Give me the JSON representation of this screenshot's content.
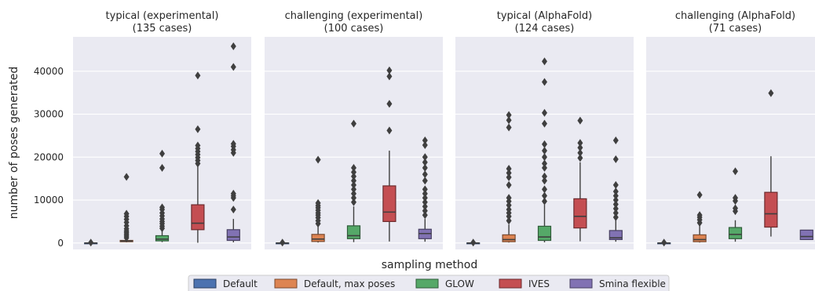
{
  "chart_data": {
    "type": "box",
    "xlabel": "sampling method",
    "ylabel": "number of poses generated",
    "ylim": [
      -1500,
      48000
    ],
    "yticks": [
      0,
      10000,
      20000,
      30000,
      40000
    ],
    "ytick_labels": [
      "0",
      "10000",
      "20000",
      "30000",
      "40000"
    ],
    "grid": true,
    "legend_position": "bottom-center",
    "methods": [
      {
        "name": "Default",
        "color": "#4c72b0"
      },
      {
        "name": "Default, max poses",
        "color": "#dd8452"
      },
      {
        "name": "GLOW",
        "color": "#55a868"
      },
      {
        "name": "IVES",
        "color": "#c44e52"
      },
      {
        "name": "Smina flexible",
        "color": "#8172b3"
      }
    ],
    "panels": [
      {
        "title_line1": "typical (experimental)",
        "title_line2": "(135 cases)",
        "boxes": [
          {
            "method": "Default",
            "whislo": 0,
            "q1": 0,
            "med": 0,
            "q3": 0,
            "whishi": 0,
            "fliers": [
              100
            ]
          },
          {
            "method": "Default, max poses",
            "whislo": 150,
            "q1": 300,
            "med": 450,
            "q3": 600,
            "whishi": 900,
            "fliers": [
              1200,
              1600,
              2000,
              2400,
              2800,
              3300,
              4000,
              4800,
              5500,
              6200,
              6800,
              15400
            ]
          },
          {
            "method": "GLOW",
            "whislo": 200,
            "q1": 500,
            "med": 900,
            "q3": 1700,
            "whishi": 3000,
            "fliers": [
              3400,
              3900,
              4500,
              5000,
              5600,
              6300,
              7000,
              7800,
              8300,
              17500,
              20800
            ]
          },
          {
            "method": "IVES",
            "whislo": 50,
            "q1": 3100,
            "med": 4600,
            "q3": 8900,
            "whishi": 17800,
            "fliers": [
              18500,
              19200,
              19900,
              20600,
              21300,
              22000,
              22700,
              26500,
              39000
            ]
          },
          {
            "method": "Smina flexible",
            "whislo": 150,
            "q1": 600,
            "med": 1400,
            "q3": 3100,
            "whishi": 5600,
            "fliers": [
              7800,
              10500,
              11000,
              11500,
              21000,
              21700,
              22500,
              23100,
              41000,
              45800
            ]
          }
        ]
      },
      {
        "title_line1": "challenging (experimental)",
        "title_line2": "(100 cases)",
        "boxes": [
          {
            "method": "Default",
            "whislo": 0,
            "q1": 0,
            "med": 0,
            "q3": 0,
            "whishi": 0,
            "fliers": [
              100
            ]
          },
          {
            "method": "Default, max poses",
            "whislo": 100,
            "q1": 350,
            "med": 900,
            "q3": 2000,
            "whishi": 3900,
            "fliers": [
              4500,
              5200,
              5900,
              6500,
              7000,
              7600,
              8200,
              8700,
              9300,
              19400
            ]
          },
          {
            "method": "GLOW",
            "whislo": 200,
            "q1": 1000,
            "med": 1700,
            "q3": 4000,
            "whishi": 8500,
            "fliers": [
              9500,
              10500,
              11500,
              12500,
              13500,
              14500,
              15500,
              16500,
              17500,
              27800
            ]
          },
          {
            "method": "IVES",
            "whislo": 350,
            "q1": 5000,
            "med": 7200,
            "q3": 13300,
            "whishi": 21500,
            "fliers": [
              26200,
              32400,
              38800,
              40200
            ]
          },
          {
            "method": "Smina flexible",
            "whislo": 300,
            "q1": 1000,
            "med": 2200,
            "q3": 3200,
            "whishi": 5600,
            "fliers": [
              6500,
              7500,
              8500,
              9500,
              10500,
              11500,
              12500,
              14500,
              16000,
              17500,
              18800,
              20000,
              22800,
              23900
            ]
          }
        ]
      },
      {
        "title_line1": "typical (AlphaFold)",
        "title_line2": "(124 cases)",
        "boxes": [
          {
            "method": "Default",
            "whislo": 0,
            "q1": 0,
            "med": 0,
            "q3": 0,
            "whishi": 0,
            "fliers": [
              100
            ]
          },
          {
            "method": "Default, max poses",
            "whislo": 100,
            "q1": 300,
            "med": 800,
            "q3": 1900,
            "whishi": 4300,
            "fliers": [
              5200,
              6200,
              7000,
              7800,
              8800,
              9700,
              10500,
              13500,
              15300,
              16300,
              17300,
              26900,
              28600,
              29800
            ]
          },
          {
            "method": "GLOW",
            "whislo": 150,
            "q1": 600,
            "med": 1400,
            "q3": 3900,
            "whishi": 8900,
            "fliers": [
              9700,
              11000,
              12500,
              14500,
              15500,
              17500,
              18500,
              20000,
              21500,
              23000,
              27800,
              30300,
              37500,
              42300
            ]
          },
          {
            "method": "IVES",
            "whislo": 400,
            "q1": 3500,
            "med": 6200,
            "q3": 10300,
            "whishi": 18800,
            "fliers": [
              19800,
              21000,
              22200,
              23300,
              28500
            ]
          },
          {
            "method": "Smina flexible",
            "whislo": 300,
            "q1": 800,
            "med": 1200,
            "q3": 2900,
            "whishi": 5300,
            "fliers": [
              6000,
              7000,
              8000,
              9000,
              10000,
              11000,
              12000,
              13500,
              19500,
              23900
            ]
          }
        ]
      },
      {
        "title_line1": "challenging (AlphaFold)",
        "title_line2": "(71 cases)",
        "boxes": [
          {
            "method": "Default",
            "whislo": 0,
            "q1": 0,
            "med": 0,
            "q3": 0,
            "whishi": 0,
            "fliers": [
              100
            ]
          },
          {
            "method": "Default, max poses",
            "whislo": 100,
            "q1": 300,
            "med": 800,
            "q3": 1900,
            "whishi": 4200,
            "fliers": [
              4700,
              5400,
              6000,
              6500,
              11200
            ]
          },
          {
            "method": "GLOW",
            "whislo": 300,
            "q1": 1000,
            "med": 2000,
            "q3": 3600,
            "whishi": 5300,
            "fliers": [
              7400,
              8100,
              9800,
              10500,
              16700
            ]
          },
          {
            "method": "IVES",
            "whislo": 1500,
            "q1": 3700,
            "med": 6800,
            "q3": 11800,
            "whishi": 20200,
            "fliers": [
              34900
            ]
          },
          {
            "method": "Smina flexible",
            "whislo": 800,
            "q1": 800,
            "med": 1500,
            "q3": 3000,
            "whishi": 3000,
            "fliers": []
          }
        ]
      }
    ]
  }
}
